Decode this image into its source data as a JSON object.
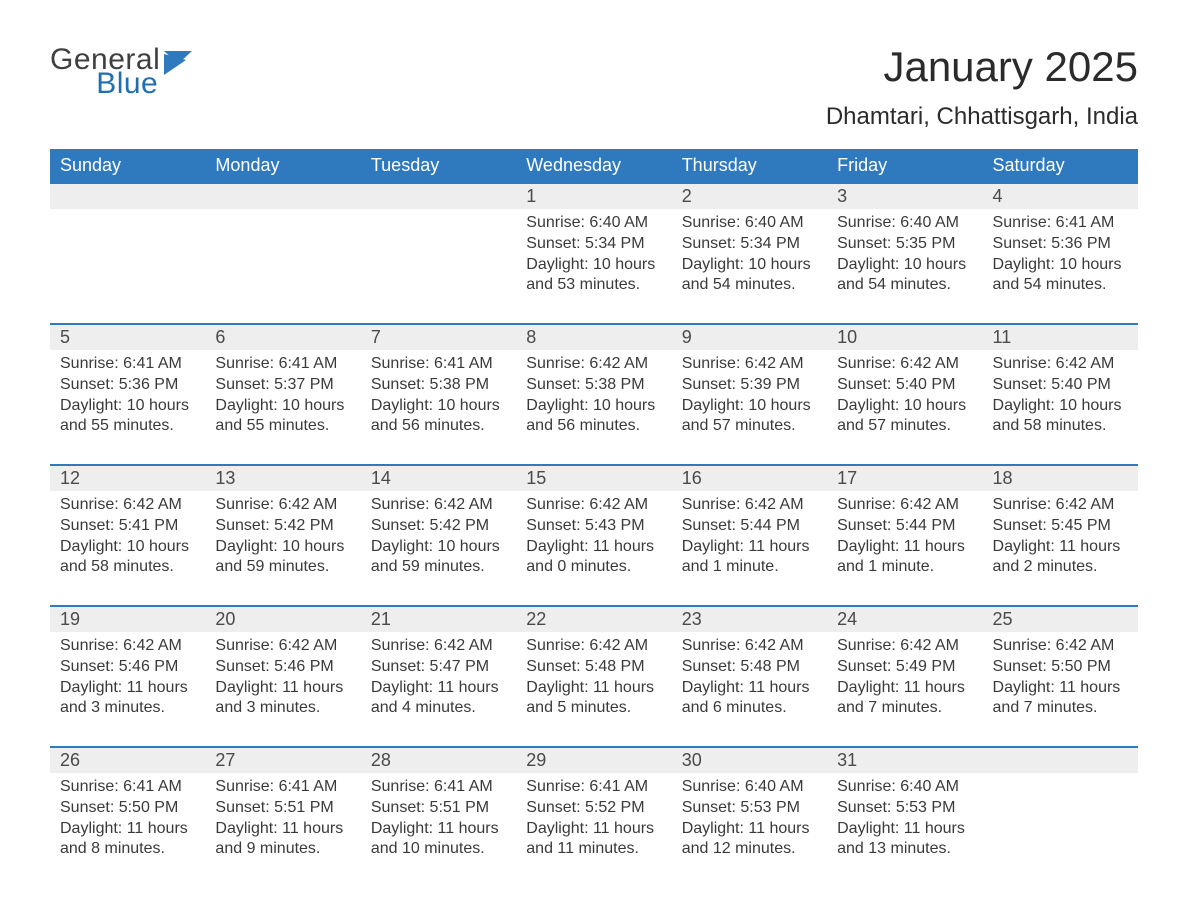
{
  "logo": {
    "word1": "General",
    "word2": "Blue"
  },
  "title": "January 2025",
  "location": "Dhamtari, Chhattisgarh, India",
  "header_bg": "#2f79bf",
  "header_text_color": "#ffffff",
  "daynum_bg": "#eeeeee",
  "row_border_color": "#2f79bf",
  "body_text_color": "#3a3a3a",
  "dayHeaders": [
    "Sunday",
    "Monday",
    "Tuesday",
    "Wednesday",
    "Thursday",
    "Friday",
    "Saturday"
  ],
  "weeks": [
    [
      null,
      null,
      null,
      {
        "n": "1",
        "sunrise": "Sunrise: 6:40 AM",
        "sunset": "Sunset: 5:34 PM",
        "daylight": "Daylight: 10 hours and 53 minutes."
      },
      {
        "n": "2",
        "sunrise": "Sunrise: 6:40 AM",
        "sunset": "Sunset: 5:34 PM",
        "daylight": "Daylight: 10 hours and 54 minutes."
      },
      {
        "n": "3",
        "sunrise": "Sunrise: 6:40 AM",
        "sunset": "Sunset: 5:35 PM",
        "daylight": "Daylight: 10 hours and 54 minutes."
      },
      {
        "n": "4",
        "sunrise": "Sunrise: 6:41 AM",
        "sunset": "Sunset: 5:36 PM",
        "daylight": "Daylight: 10 hours and 54 minutes."
      }
    ],
    [
      {
        "n": "5",
        "sunrise": "Sunrise: 6:41 AM",
        "sunset": "Sunset: 5:36 PM",
        "daylight": "Daylight: 10 hours and 55 minutes."
      },
      {
        "n": "6",
        "sunrise": "Sunrise: 6:41 AM",
        "sunset": "Sunset: 5:37 PM",
        "daylight": "Daylight: 10 hours and 55 minutes."
      },
      {
        "n": "7",
        "sunrise": "Sunrise: 6:41 AM",
        "sunset": "Sunset: 5:38 PM",
        "daylight": "Daylight: 10 hours and 56 minutes."
      },
      {
        "n": "8",
        "sunrise": "Sunrise: 6:42 AM",
        "sunset": "Sunset: 5:38 PM",
        "daylight": "Daylight: 10 hours and 56 minutes."
      },
      {
        "n": "9",
        "sunrise": "Sunrise: 6:42 AM",
        "sunset": "Sunset: 5:39 PM",
        "daylight": "Daylight: 10 hours and 57 minutes."
      },
      {
        "n": "10",
        "sunrise": "Sunrise: 6:42 AM",
        "sunset": "Sunset: 5:40 PM",
        "daylight": "Daylight: 10 hours and 57 minutes."
      },
      {
        "n": "11",
        "sunrise": "Sunrise: 6:42 AM",
        "sunset": "Sunset: 5:40 PM",
        "daylight": "Daylight: 10 hours and 58 minutes."
      }
    ],
    [
      {
        "n": "12",
        "sunrise": "Sunrise: 6:42 AM",
        "sunset": "Sunset: 5:41 PM",
        "daylight": "Daylight: 10 hours and 58 minutes."
      },
      {
        "n": "13",
        "sunrise": "Sunrise: 6:42 AM",
        "sunset": "Sunset: 5:42 PM",
        "daylight": "Daylight: 10 hours and 59 minutes."
      },
      {
        "n": "14",
        "sunrise": "Sunrise: 6:42 AM",
        "sunset": "Sunset: 5:42 PM",
        "daylight": "Daylight: 10 hours and 59 minutes."
      },
      {
        "n": "15",
        "sunrise": "Sunrise: 6:42 AM",
        "sunset": "Sunset: 5:43 PM",
        "daylight": "Daylight: 11 hours and 0 minutes."
      },
      {
        "n": "16",
        "sunrise": "Sunrise: 6:42 AM",
        "sunset": "Sunset: 5:44 PM",
        "daylight": "Daylight: 11 hours and 1 minute."
      },
      {
        "n": "17",
        "sunrise": "Sunrise: 6:42 AM",
        "sunset": "Sunset: 5:44 PM",
        "daylight": "Daylight: 11 hours and 1 minute."
      },
      {
        "n": "18",
        "sunrise": "Sunrise: 6:42 AM",
        "sunset": "Sunset: 5:45 PM",
        "daylight": "Daylight: 11 hours and 2 minutes."
      }
    ],
    [
      {
        "n": "19",
        "sunrise": "Sunrise: 6:42 AM",
        "sunset": "Sunset: 5:46 PM",
        "daylight": "Daylight: 11 hours and 3 minutes."
      },
      {
        "n": "20",
        "sunrise": "Sunrise: 6:42 AM",
        "sunset": "Sunset: 5:46 PM",
        "daylight": "Daylight: 11 hours and 3 minutes."
      },
      {
        "n": "21",
        "sunrise": "Sunrise: 6:42 AM",
        "sunset": "Sunset: 5:47 PM",
        "daylight": "Daylight: 11 hours and 4 minutes."
      },
      {
        "n": "22",
        "sunrise": "Sunrise: 6:42 AM",
        "sunset": "Sunset: 5:48 PM",
        "daylight": "Daylight: 11 hours and 5 minutes."
      },
      {
        "n": "23",
        "sunrise": "Sunrise: 6:42 AM",
        "sunset": "Sunset: 5:48 PM",
        "daylight": "Daylight: 11 hours and 6 minutes."
      },
      {
        "n": "24",
        "sunrise": "Sunrise: 6:42 AM",
        "sunset": "Sunset: 5:49 PM",
        "daylight": "Daylight: 11 hours and 7 minutes."
      },
      {
        "n": "25",
        "sunrise": "Sunrise: 6:42 AM",
        "sunset": "Sunset: 5:50 PM",
        "daylight": "Daylight: 11 hours and 7 minutes."
      }
    ],
    [
      {
        "n": "26",
        "sunrise": "Sunrise: 6:41 AM",
        "sunset": "Sunset: 5:50 PM",
        "daylight": "Daylight: 11 hours and 8 minutes."
      },
      {
        "n": "27",
        "sunrise": "Sunrise: 6:41 AM",
        "sunset": "Sunset: 5:51 PM",
        "daylight": "Daylight: 11 hours and 9 minutes."
      },
      {
        "n": "28",
        "sunrise": "Sunrise: 6:41 AM",
        "sunset": "Sunset: 5:51 PM",
        "daylight": "Daylight: 11 hours and 10 minutes."
      },
      {
        "n": "29",
        "sunrise": "Sunrise: 6:41 AM",
        "sunset": "Sunset: 5:52 PM",
        "daylight": "Daylight: 11 hours and 11 minutes."
      },
      {
        "n": "30",
        "sunrise": "Sunrise: 6:40 AM",
        "sunset": "Sunset: 5:53 PM",
        "daylight": "Daylight: 11 hours and 12 minutes."
      },
      {
        "n": "31",
        "sunrise": "Sunrise: 6:40 AM",
        "sunset": "Sunset: 5:53 PM",
        "daylight": "Daylight: 11 hours and 13 minutes."
      },
      null
    ]
  ]
}
